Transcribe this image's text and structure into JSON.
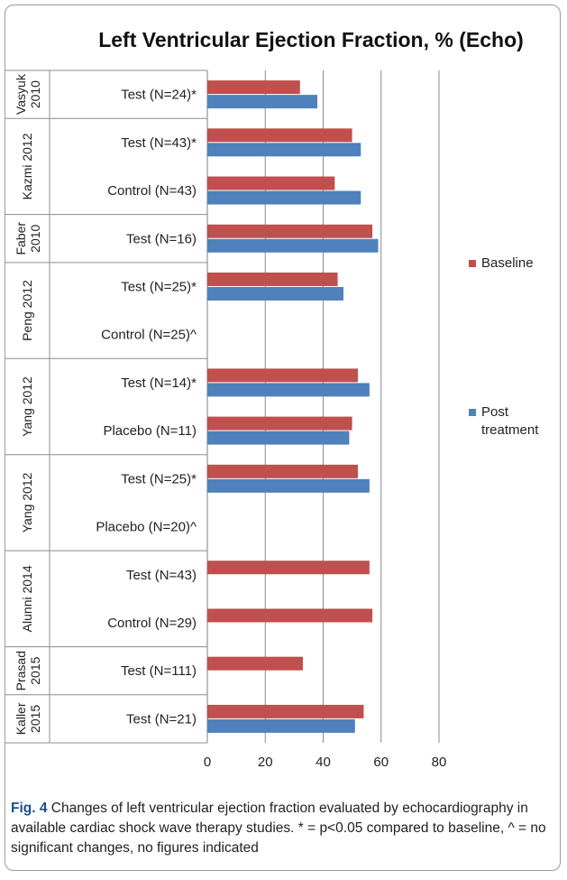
{
  "chart_data": {
    "type": "bar",
    "orientation": "horizontal",
    "title": "Left Ventricular Ejection Fraction, % (Echo)",
    "xlabel": "",
    "ylabel": "",
    "xlim": [
      0,
      80
    ],
    "x_ticks": [
      "0",
      "20",
      "40",
      "60",
      "80"
    ],
    "grid": true,
    "legend_position": "right",
    "legend": [
      {
        "key": "baseline",
        "label": "Baseline",
        "color": "#c0504d"
      },
      {
        "key": "post",
        "label": "Post treatment",
        "color": "#4f81bd"
      }
    ],
    "groups": [
      {
        "label": "Vasyuk 2010",
        "categories": [
          {
            "label": "Test (N=24)*",
            "baseline": 32,
            "post": 38
          }
        ]
      },
      {
        "label": "Kazmi 2012",
        "categories": [
          {
            "label": "Test (N=43)*",
            "baseline": 50,
            "post": 53
          },
          {
            "label": "Control (N=43)",
            "baseline": 44,
            "post": 53
          }
        ]
      },
      {
        "label": "Faber 2010",
        "categories": [
          {
            "label": "Test (N=16)",
            "baseline": 57,
            "post": 59
          }
        ]
      },
      {
        "label": "Peng 2012",
        "categories": [
          {
            "label": "Test (N=25)*",
            "baseline": 45,
            "post": 47
          },
          {
            "label": "Control (N=25)^",
            "baseline": null,
            "post": null
          }
        ]
      },
      {
        "label": "Yang 2012",
        "categories": [
          {
            "label": "Test (N=14)*",
            "baseline": 52,
            "post": 56
          },
          {
            "label": "Placebo (N=11)",
            "baseline": 50,
            "post": 49
          }
        ]
      },
      {
        "label": "Yang 2012",
        "categories": [
          {
            "label": "Test (N=25)*",
            "baseline": 52,
            "post": 56
          },
          {
            "label": "Placebo (N=20)^",
            "baseline": null,
            "post": null
          }
        ]
      },
      {
        "label": "Alunni 2014",
        "categories": [
          {
            "label": "Test (N=43)",
            "baseline": 56,
            "post": null
          },
          {
            "label": "Control (N=29)",
            "baseline": 57,
            "post": null
          }
        ]
      },
      {
        "label": "Prasad 2015",
        "categories": [
          {
            "label": "Test (N=111)",
            "baseline": 33,
            "post": null
          }
        ]
      },
      {
        "label": "Kaller 2015",
        "categories": [
          {
            "label": "Test (N=21)",
            "baseline": 54,
            "post": 51
          }
        ]
      }
    ]
  },
  "caption": {
    "fig_label": "Fig. 4",
    "text": " Changes of left ventricular ejection fraction evaluated by echocardiography in available cardiac shock wave therapy studies. * = p<0.05 compared to baseline, ^ = no significant changes, no figures indicated"
  }
}
